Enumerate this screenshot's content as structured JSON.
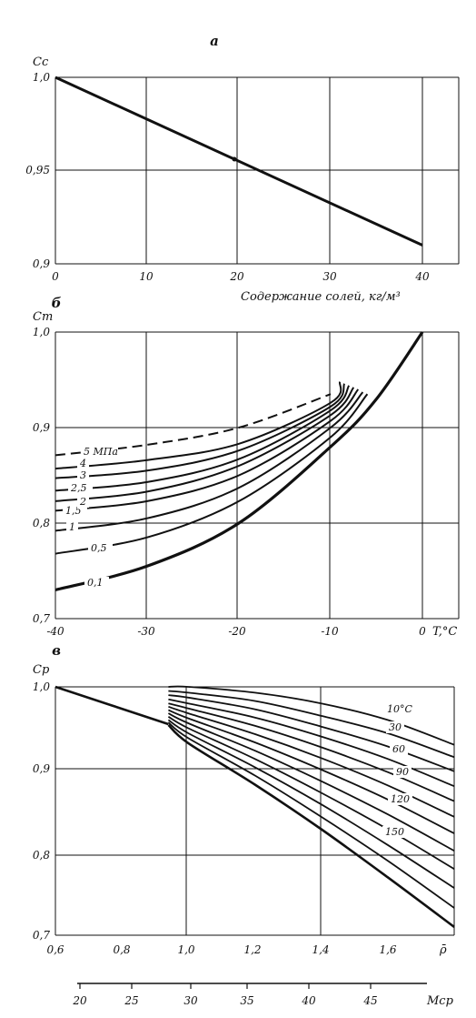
{
  "chart_data": [
    {
      "type": "line",
      "panel_label": "а",
      "ylabel": "Cс",
      "xlabel": "Содержание солей, кг/м³",
      "xlim": [
        0,
        45
      ],
      "ylim": [
        0.9,
        1.0
      ],
      "x_ticks": [
        "0",
        "10",
        "20",
        "30",
        "40"
      ],
      "y_ticks": [
        "0,9",
        "0,95",
        "1,0"
      ],
      "grid": true,
      "series": [
        {
          "x": [
            0,
            40
          ],
          "y": [
            1.0,
            0.91
          ]
        }
      ]
    },
    {
      "type": "line",
      "panel_label": "б",
      "ylabel": "Cт",
      "xlabel": "T,°C",
      "xlim": [
        -40,
        3
      ],
      "ylim": [
        0.7,
        1.0
      ],
      "x_ticks": [
        "-40",
        "-30",
        "-20",
        "-10",
        "0"
      ],
      "y_ticks": [
        "0,7",
        "0,8",
        "0,9",
        "1,0"
      ],
      "grid": true,
      "series": [
        {
          "label": "0,1",
          "x": [
            -40,
            -30,
            -20,
            -10,
            -5,
            0
          ],
          "y": [
            0.73,
            0.755,
            0.8,
            0.88,
            0.93,
            1.0
          ]
        },
        {
          "label": "0,5",
          "x": [
            -40,
            -30,
            -20,
            -10,
            -6
          ],
          "y": [
            0.768,
            0.785,
            0.823,
            0.89,
            0.935
          ]
        },
        {
          "label": "1",
          "x": [
            -40,
            -30,
            -20,
            -10,
            -6.5
          ],
          "y": [
            0.792,
            0.805,
            0.837,
            0.9,
            0.937
          ]
        },
        {
          "label": "1,5",
          "x": [
            -40,
            -30,
            -20,
            -10,
            -7
          ],
          "y": [
            0.813,
            0.823,
            0.85,
            0.907,
            0.94
          ]
        },
        {
          "label": "2",
          "x": [
            -40,
            -30,
            -20,
            -10,
            -7.5
          ],
          "y": [
            0.823,
            0.833,
            0.86,
            0.913,
            0.942
          ]
        },
        {
          "label": "2,5",
          "x": [
            -40,
            -30,
            -20,
            -10,
            -8
          ],
          "y": [
            0.834,
            0.843,
            0.867,
            0.918,
            0.944
          ]
        },
        {
          "label": "3",
          "x": [
            -40,
            -30,
            -20,
            -10,
            -8.5
          ],
          "y": [
            0.847,
            0.855,
            0.876,
            0.922,
            0.946
          ]
        },
        {
          "label": "4",
          "x": [
            -40,
            -30,
            -20,
            -10,
            -9
          ],
          "y": [
            0.857,
            0.866,
            0.883,
            0.926,
            0.948
          ]
        },
        {
          "label": "5 МПа",
          "dashed": true,
          "x": [
            -40,
            -30,
            -20,
            -10
          ],
          "y": [
            0.871,
            0.882,
            0.9,
            0.935
          ]
        }
      ]
    },
    {
      "type": "line",
      "panel_label": "в",
      "ylabel": "Cр",
      "xlabel": "ρ̄",
      "second_axis_label": "Мср",
      "xlim": [
        0.6,
        1.8
      ],
      "ylim": [
        0.7,
        1.0
      ],
      "x_ticks": [
        "0,6",
        "0,8",
        "1,0",
        "1,2",
        "1,4",
        "1,6"
      ],
      "y_ticks": [
        "0,7",
        "0,8",
        "0,9",
        "1,0"
      ],
      "second_axis_ticks": [
        "20",
        "25",
        "30",
        "35",
        "40",
        "45"
      ],
      "grid": true,
      "curve_labels": [
        "10°C",
        "30",
        "60",
        "90",
        "120",
        "150"
      ],
      "series": [
        {
          "name": "envelope",
          "x": [
            0.6,
            0.94
          ],
          "y": [
            1.0,
            0.955
          ]
        },
        {
          "name": "10°C",
          "x": [
            0.94,
            1.0,
            1.2,
            1.4,
            1.6,
            1.8
          ],
          "y": [
            1.0,
            1.0,
            0.993,
            0.98,
            0.96,
            0.93
          ]
        },
        {
          "x": [
            0.94,
            1.0,
            1.2,
            1.4,
            1.6,
            1.8
          ],
          "y": [
            0.995,
            0.993,
            0.983,
            0.965,
            0.944,
            0.915
          ]
        },
        {
          "name": "30",
          "x": [
            0.94,
            1.0,
            1.2,
            1.4,
            1.6,
            1.8
          ],
          "y": [
            0.99,
            0.987,
            0.973,
            0.952,
            0.928,
            0.898
          ]
        },
        {
          "x": [
            0.94,
            1.0,
            1.2,
            1.4,
            1.6,
            1.8
          ],
          "y": [
            0.985,
            0.98,
            0.963,
            0.94,
            0.913,
            0.88
          ]
        },
        {
          "name": "60",
          "x": [
            0.94,
            1.0,
            1.2,
            1.4,
            1.6,
            1.8
          ],
          "y": [
            0.98,
            0.974,
            0.953,
            0.927,
            0.897,
            0.862
          ]
        },
        {
          "x": [
            0.94,
            1.0,
            1.2,
            1.4,
            1.6,
            1.8
          ],
          "y": [
            0.976,
            0.968,
            0.943,
            0.914,
            0.881,
            0.843
          ]
        },
        {
          "name": "90",
          "x": [
            0.94,
            1.0,
            1.2,
            1.4,
            1.6,
            1.8
          ],
          "y": [
            0.972,
            0.962,
            0.933,
            0.9,
            0.864,
            0.823
          ]
        },
        {
          "x": [
            0.94,
            1.0,
            1.2,
            1.4,
            1.6,
            1.8
          ],
          "y": [
            0.968,
            0.956,
            0.923,
            0.886,
            0.846,
            0.802
          ]
        },
        {
          "name": "120",
          "x": [
            0.94,
            1.0,
            1.2,
            1.4,
            1.6,
            1.8
          ],
          "y": [
            0.964,
            0.95,
            0.913,
            0.872,
            0.828,
            0.78
          ]
        },
        {
          "x": [
            0.94,
            1.0,
            1.2,
            1.4,
            1.6,
            1.8
          ],
          "y": [
            0.96,
            0.944,
            0.903,
            0.858,
            0.809,
            0.757
          ]
        },
        {
          "name": "150",
          "x": [
            0.94,
            1.0,
            1.2,
            1.4,
            1.6,
            1.8
          ],
          "y": [
            0.957,
            0.938,
            0.893,
            0.843,
            0.79,
            0.733
          ]
        },
        {
          "x": [
            0.94,
            1.0,
            1.2,
            1.4,
            1.6,
            1.8
          ],
          "y": [
            0.954,
            0.932,
            0.882,
            0.828,
            0.77,
            0.71
          ]
        }
      ]
    }
  ]
}
